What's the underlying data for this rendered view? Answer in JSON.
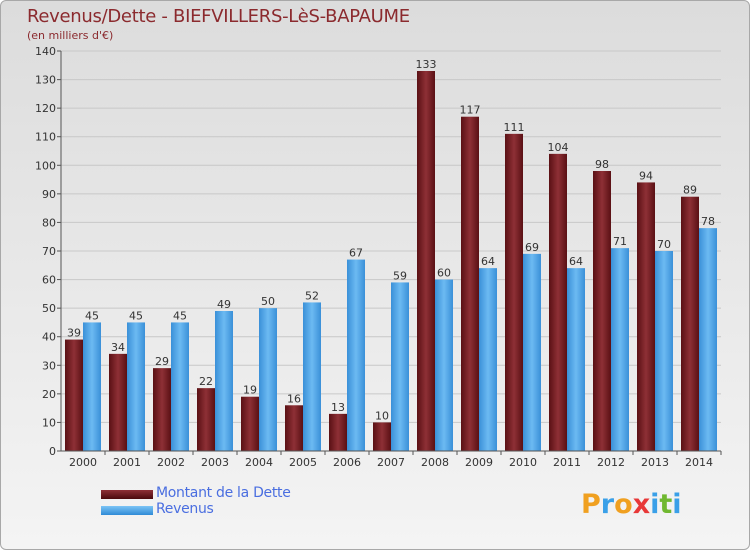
{
  "title": "Revenus/Dette - BIEFVILLERS-LèS-BAPAUME",
  "subtitle": "(en milliers d'€)",
  "brand": {
    "letters": [
      "P",
      "r",
      "o",
      "x",
      "i",
      "t",
      "i"
    ],
    "colors": [
      "#f0a020",
      "#3aa0e8",
      "#f0a020",
      "#e83838",
      "#3aa0e8",
      "#70b830",
      "#3aa0e8"
    ]
  },
  "colors": {
    "dette_top": "#8e3036",
    "dette_bottom": "#4a0a0c",
    "revenus_top": "#7cc4f5",
    "revenus_bottom": "#2f8ad6",
    "grid": "#c8c8c8",
    "text": "#333333"
  },
  "chart_data": {
    "type": "bar",
    "categories": [
      "2000",
      "2001",
      "2002",
      "2003",
      "2004",
      "2005",
      "2006",
      "2007",
      "2008",
      "2009",
      "2010",
      "2011",
      "2012",
      "2013",
      "2014"
    ],
    "series": [
      {
        "name": "Montant de la Dette",
        "values": [
          39,
          34,
          29,
          22,
          19,
          16,
          13,
          10,
          133,
          117,
          111,
          104,
          98,
          94,
          89
        ]
      },
      {
        "name": "Revenus",
        "values": [
          45,
          45,
          45,
          49,
          50,
          52,
          67,
          59,
          60,
          64,
          69,
          64,
          71,
          70,
          78
        ]
      }
    ],
    "yticks": [
      0,
      10,
      20,
      30,
      40,
      50,
      60,
      70,
      80,
      90,
      100,
      110,
      120,
      130,
      140
    ],
    "ylim": [
      0,
      140
    ],
    "grid": true,
    "legend": "bottom-left"
  }
}
